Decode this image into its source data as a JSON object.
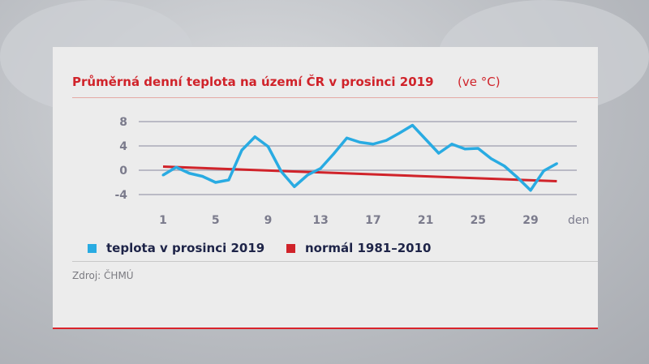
{
  "title": "Průměrná denní teplota na území ČR v prosinci 2019",
  "unit": "(ve °C)",
  "source": "Zdroj: ČHMÚ",
  "colors": {
    "series": "#29abe2",
    "normal": "#d0232a",
    "title": "#d0232a",
    "grid": "#a9a9b8"
  },
  "chart_data": {
    "type": "line",
    "title": "Průměrná denní teplota na území ČR v prosinci 2019",
    "xlabel": "den",
    "ylabel": "",
    "xlim": [
      1,
      31
    ],
    "ylim": [
      -4,
      8
    ],
    "grid": true,
    "legend_position": "bottom",
    "x_ticks": [
      "1",
      "5",
      "9",
      "13",
      "17",
      "21",
      "25",
      "29"
    ],
    "y_ticks": [
      "8",
      "4",
      "0",
      "-4"
    ],
    "x": [
      1,
      2,
      3,
      4,
      5,
      6,
      7,
      8,
      9,
      10,
      11,
      12,
      13,
      14,
      15,
      16,
      17,
      18,
      19,
      20,
      21,
      22,
      23,
      24,
      25,
      26,
      27,
      28,
      29,
      30,
      31
    ],
    "series": [
      {
        "name": "teplota v prosinci 2019",
        "values": [
          -0.8,
          0.5,
          -0.5,
          -1.0,
          -2.0,
          -1.6,
          3.3,
          5.5,
          3.9,
          -0.2,
          -2.7,
          -0.8,
          0.3,
          2.7,
          5.3,
          4.6,
          4.3,
          4.9,
          6.1,
          7.4,
          5.1,
          2.8,
          4.3,
          3.5,
          3.6,
          1.9,
          0.7,
          -1.2,
          -3.3,
          -0.1,
          1.1
        ]
      },
      {
        "name": "normál 1981–2010",
        "values": [
          0.6,
          -1.8
        ],
        "x": [
          1,
          31
        ]
      }
    ]
  }
}
